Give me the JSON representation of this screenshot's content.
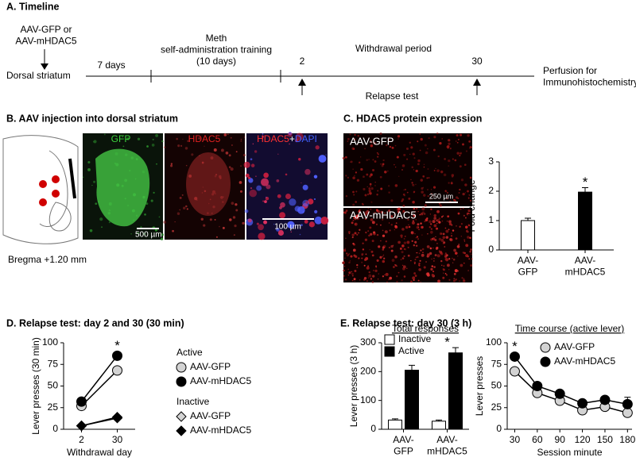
{
  "panel_a": {
    "title": "A. Timeline",
    "vector": "AAV-GFP or\nAAV-mHDAC5",
    "site": "Dorsal striatum",
    "days": "7 days",
    "training": "Meth\nself-administration training\n(10 days)",
    "day_early": "2",
    "day_late": "30",
    "withdrawal": "Withdrawal period",
    "relapse": "Relapse test",
    "perfusion": "Perfusion for\nImmunohistochemistry"
  },
  "panel_b": {
    "title": "B. AAV injection into dorsal striatum",
    "label_gfp": "GFP",
    "label_hdac5": "HDAC5",
    "label_merge_hdac5": "HDAC5",
    "label_merge_plus": "+",
    "label_merge_dapi": "DAPI",
    "scale_a": "500 µm",
    "scale_b": "100 µm",
    "bregma": "Bregma +1.20 mm"
  },
  "panel_c": {
    "title": "C. HDAC5 protein expression",
    "image_top": "AAV-GFP",
    "image_bottom": "AAV-mHDAC5",
    "scale": "250 µm"
  },
  "panel_d": {
    "title": "D. Relapse test: day 2 and 30 (30 min)"
  },
  "panel_e": {
    "title": "E. Relapse test: day 30 (3 h)"
  },
  "chart_data": [
    {
      "type": "bar",
      "ylabel": "Fold change",
      "categories": [
        "AAV-\nGFP",
        "AAV-\nmHDAC5"
      ],
      "values": [
        1.0,
        1.97
      ],
      "errors": [
        0.08,
        0.15
      ],
      "colors": [
        "#ffffff",
        "#000000"
      ],
      "significance": [
        null,
        "*"
      ],
      "ylim": [
        0,
        3
      ],
      "yticks": [
        0,
        1,
        2,
        3
      ]
    },
    {
      "type": "line",
      "ylabel": "Lever presses (30 min)",
      "xlabel": "Withdrawal day",
      "categories": [
        "2",
        "30"
      ],
      "ylim": [
        0,
        100
      ],
      "yticks": [
        0,
        25,
        50,
        75,
        100
      ],
      "legend": "right",
      "significance": [
        null,
        "*"
      ],
      "series": [
        {
          "name": "AAV-GFP",
          "group": "Active",
          "marker": "circle",
          "color": "#d3d3d3",
          "values": [
            27,
            68
          ]
        },
        {
          "name": "AAV-mHDAC5",
          "group": "Active",
          "marker": "circle",
          "color": "#000000",
          "values": [
            32,
            85
          ]
        },
        {
          "name": "AAV-GFP",
          "group": "Inactive",
          "marker": "diamond",
          "color": "#d3d3d3",
          "values": [
            4,
            13
          ]
        },
        {
          "name": "AAV-mHDAC5",
          "group": "Inactive",
          "marker": "diamond",
          "color": "#000000",
          "values": [
            4,
            14
          ]
        }
      ]
    },
    {
      "type": "bar",
      "title": "Total responses",
      "ylabel": "Lever presses (3 h)",
      "categories": [
        "AAV-\nGFP",
        "AAV-\nmHDAC5"
      ],
      "ylim": [
        0,
        300
      ],
      "yticks": [
        0,
        100,
        200,
        300
      ],
      "legend": "upper left",
      "significance": [
        null,
        "*"
      ],
      "series": [
        {
          "name": "Inactive",
          "color": "#ffffff",
          "values": [
            32,
            28
          ],
          "errors": [
            4,
            4
          ]
        },
        {
          "name": "Active",
          "color": "#000000",
          "values": [
            205,
            265
          ],
          "errors": [
            17,
            18
          ]
        }
      ]
    },
    {
      "type": "line",
      "title": "Time course (active lever)",
      "ylabel": "Lever presses",
      "xlabel": "Session minute",
      "x": [
        30,
        60,
        90,
        120,
        150,
        180
      ],
      "xlim": [
        20,
        186
      ],
      "xticks": [
        30,
        60,
        90,
        120,
        150,
        180
      ],
      "ylim": [
        0,
        100
      ],
      "yticks": [
        0,
        25,
        50,
        75,
        100
      ],
      "legend": "upper right",
      "significance": [
        "*",
        null,
        null,
        null,
        null,
        null
      ],
      "series": [
        {
          "name": "AAV-GFP",
          "marker": "circle",
          "color": "#d3d3d3",
          "values": [
            67,
            42,
            33,
            22,
            26,
            19
          ]
        },
        {
          "name": "AAV-mHDAC5",
          "marker": "circle",
          "color": "#000000",
          "values": [
            84,
            50,
            41,
            30,
            34,
            29
          ],
          "errors": [
            3,
            3,
            3,
            3,
            3,
            8
          ]
        }
      ]
    }
  ]
}
